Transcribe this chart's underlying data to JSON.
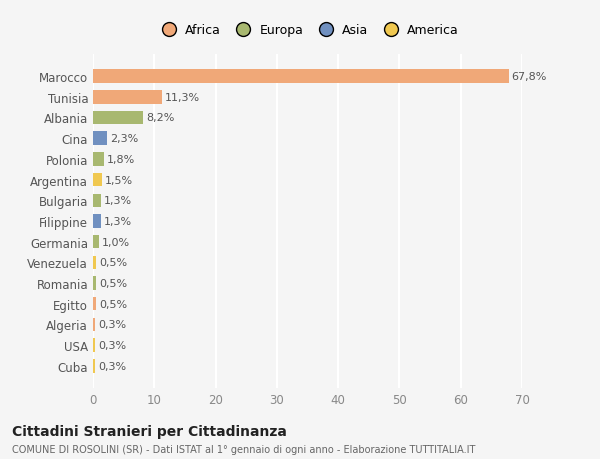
{
  "countries": [
    "Marocco",
    "Tunisia",
    "Albania",
    "Cina",
    "Polonia",
    "Argentina",
    "Bulgaria",
    "Filippine",
    "Germania",
    "Venezuela",
    "Romania",
    "Egitto",
    "Algeria",
    "USA",
    "Cuba"
  ],
  "values": [
    67.8,
    11.3,
    8.2,
    2.3,
    1.8,
    1.5,
    1.3,
    1.3,
    1.0,
    0.5,
    0.5,
    0.5,
    0.3,
    0.3,
    0.3
  ],
  "labels": [
    "67,8%",
    "11,3%",
    "8,2%",
    "2,3%",
    "1,8%",
    "1,5%",
    "1,3%",
    "1,3%",
    "1,0%",
    "0,5%",
    "0,5%",
    "0,5%",
    "0,3%",
    "0,3%",
    "0,3%"
  ],
  "colors": [
    "#f0a878",
    "#f0a878",
    "#a8b870",
    "#7090c0",
    "#a8b870",
    "#f0c850",
    "#a8b870",
    "#7090c0",
    "#a8b870",
    "#f0c850",
    "#a8b870",
    "#f0a878",
    "#f0a878",
    "#f0c850",
    "#f0c850"
  ],
  "legend_labels": [
    "Africa",
    "Europa",
    "Asia",
    "America"
  ],
  "legend_colors": [
    "#f0a878",
    "#a8b870",
    "#7090c0",
    "#f0c850"
  ],
  "title": "Cittadini Stranieri per Cittadinanza",
  "subtitle": "COMUNE DI ROSOLINI (SR) - Dati ISTAT al 1° gennaio di ogni anno - Elaborazione TUTTITALIA.IT",
  "xlim": [
    0,
    70
  ],
  "xticks": [
    0,
    10,
    20,
    30,
    40,
    50,
    60,
    70
  ],
  "bg_color": "#f5f5f5",
  "bar_height": 0.65
}
